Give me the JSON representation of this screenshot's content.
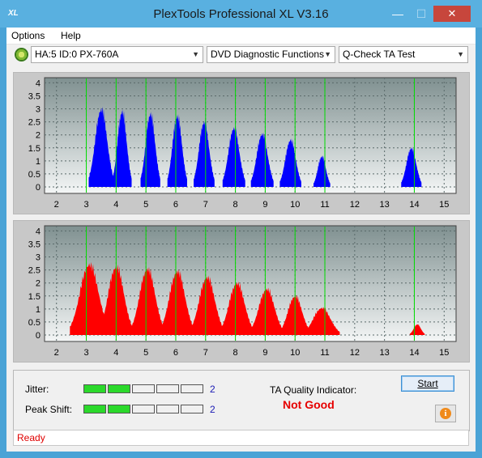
{
  "window": {
    "title": "PlexTools Professional XL V3.16",
    "app_icon_text": "XL",
    "minimize_glyph": "—",
    "maximize_glyph": "☐",
    "close_glyph": "✕"
  },
  "menu": {
    "options_label": "Options",
    "help_label": "Help"
  },
  "toolbar": {
    "drive_select": "HA:5 ID:0  PX-760A",
    "function_select": "DVD Diagnostic Functions",
    "test_select": "Q-Check TA Test"
  },
  "chart_data": [
    {
      "type": "area",
      "name_in_ui": "upper-graph",
      "color": "#0000ff",
      "xlim": [
        1.6,
        15.4
      ],
      "ylim": [
        -0.25,
        4.2
      ],
      "x_ticks": [
        "2",
        "3",
        "4",
        "5",
        "6",
        "7",
        "8",
        "9",
        "10",
        "11",
        "12",
        "13",
        "14",
        "15"
      ],
      "y_ticks": [
        "0",
        "0.5",
        "1",
        "1.5",
        "2",
        "2.5",
        "3",
        "3.5",
        "4"
      ],
      "green_markers": [
        3,
        4,
        5,
        6,
        7,
        8,
        9,
        10,
        11,
        14
      ],
      "peaks": [
        {
          "center": 3.5,
          "height": 3.3,
          "half_width": 0.42
        },
        {
          "center": 4.2,
          "height": 3.2,
          "half_width": 0.32
        },
        {
          "center": 5.15,
          "height": 3.1,
          "half_width": 0.33
        },
        {
          "center": 6.05,
          "height": 3.0,
          "half_width": 0.33
        },
        {
          "center": 6.95,
          "height": 2.75,
          "half_width": 0.35
        },
        {
          "center": 7.95,
          "height": 2.5,
          "half_width": 0.38
        },
        {
          "center": 8.9,
          "height": 2.25,
          "half_width": 0.38
        },
        {
          "center": 9.85,
          "height": 2.0,
          "half_width": 0.36
        },
        {
          "center": 10.9,
          "height": 1.3,
          "half_width": 0.28
        },
        {
          "center": 13.9,
          "height": 1.65,
          "half_width": 0.34
        }
      ]
    },
    {
      "type": "area",
      "name_in_ui": "lower-graph",
      "color": "#ff0000",
      "xlim": [
        1.6,
        15.4
      ],
      "ylim": [
        -0.25,
        4.2
      ],
      "x_ticks": [
        "2",
        "3",
        "4",
        "5",
        "6",
        "7",
        "8",
        "9",
        "10",
        "11",
        "12",
        "13",
        "14",
        "15"
      ],
      "y_ticks": [
        "0",
        "0.5",
        "1",
        "1.5",
        "2",
        "2.5",
        "3",
        "3.5",
        "4"
      ],
      "green_markers": [
        3,
        4,
        5,
        6,
        7,
        8,
        9,
        10,
        11,
        14
      ],
      "peaks": [
        {
          "center": 3.1,
          "height": 3.0,
          "half_width": 0.65
        },
        {
          "center": 4.0,
          "height": 2.9,
          "half_width": 0.55
        },
        {
          "center": 5.05,
          "height": 2.8,
          "half_width": 0.55
        },
        {
          "center": 6.05,
          "height": 2.7,
          "half_width": 0.55
        },
        {
          "center": 7.05,
          "height": 2.45,
          "half_width": 0.55
        },
        {
          "center": 8.05,
          "height": 2.2,
          "half_width": 0.55
        },
        {
          "center": 9.05,
          "height": 1.95,
          "half_width": 0.55
        },
        {
          "center": 10.0,
          "height": 1.65,
          "half_width": 0.5
        },
        {
          "center": 10.9,
          "height": 1.15,
          "half_width": 0.6
        },
        {
          "center": 14.1,
          "height": 0.45,
          "half_width": 0.25
        }
      ]
    }
  ],
  "results": {
    "jitter_label": "Jitter:",
    "jitter_value": "2",
    "jitter_level": 2,
    "peak_shift_label": "Peak Shift:",
    "peak_shift_value": "2",
    "peak_shift_level": 2,
    "segments_total": 5,
    "ta_quality_label": "TA Quality Indicator:",
    "ta_quality_value": "Not Good",
    "start_label": "Start",
    "info_glyph": "i"
  },
  "status": {
    "text": "Ready"
  }
}
